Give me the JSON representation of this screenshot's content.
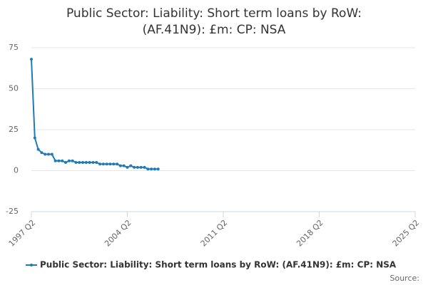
{
  "chart_data": {
    "type": "line",
    "title": "Public Sector: Liability: Short term loans by RoW: (AF.41N9): £m: CP: NSA",
    "source_label": "Source:",
    "x": [
      "1997 Q2",
      "1997 Q3",
      "1997 Q4",
      "1998 Q1",
      "1998 Q2",
      "1998 Q3",
      "1998 Q4",
      "1999 Q1",
      "1999 Q2",
      "1999 Q3",
      "1999 Q4",
      "2000 Q1",
      "2000 Q2",
      "2000 Q3",
      "2000 Q4",
      "2001 Q1",
      "2001 Q2",
      "2001 Q3",
      "2001 Q4",
      "2002 Q1",
      "2002 Q2",
      "2002 Q3",
      "2002 Q4",
      "2003 Q1",
      "2003 Q2",
      "2003 Q3",
      "2003 Q4",
      "2004 Q1",
      "2004 Q2",
      "2004 Q3",
      "2004 Q4",
      "2005 Q1",
      "2005 Q2",
      "2005 Q3",
      "2005 Q4",
      "2006 Q1",
      "2006 Q2",
      "2006 Q3"
    ],
    "series": [
      {
        "name": "Public Sector: Liability: Short term loans by RoW: (AF.41N9): £m: CP: NSA",
        "color": "#1f7bb6",
        "values": [
          68,
          20,
          13,
          11,
          10,
          10,
          10,
          6,
          6,
          6,
          5,
          6,
          6,
          5,
          5,
          5,
          5,
          5,
          5,
          5,
          4,
          4,
          4,
          4,
          4,
          4,
          3,
          3,
          2,
          3,
          2,
          2,
          2,
          2,
          1,
          1,
          1,
          1
        ]
      }
    ],
    "xlim": [
      "1997 Q2",
      "2025 Q2"
    ],
    "xticks": [
      "1997 Q2",
      "2004 Q2",
      "2011 Q2",
      "2018 Q2",
      "2025 Q2"
    ],
    "ylim": [
      -25,
      75
    ],
    "yticks": [
      -25,
      0,
      25,
      50,
      75
    ],
    "grid": true
  }
}
